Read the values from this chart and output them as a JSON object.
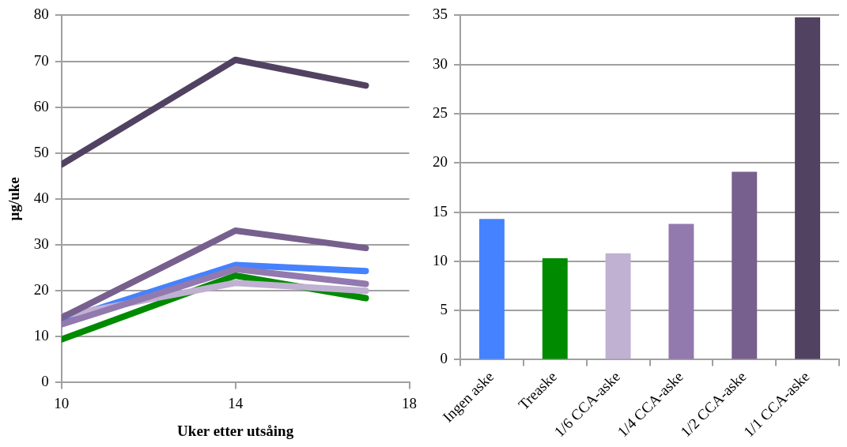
{
  "chart_data": [
    {
      "type": "line",
      "xlabel": "Uker etter utsåing",
      "ylabel": "µg/uke",
      "x": [
        10,
        14,
        17
      ],
      "xlim": [
        10,
        18
      ],
      "xticks": [
        10,
        14,
        18
      ],
      "ylim": [
        0,
        80
      ],
      "yticks": [
        0,
        10,
        20,
        30,
        40,
        50,
        60,
        70,
        80
      ],
      "grid": "y",
      "legend": false,
      "marker": "none",
      "line_style": "solid",
      "series": [
        {
          "color": "#514262",
          "values": [
            47.5,
            70.3,
            64.7
          ]
        },
        {
          "color": "#77608e",
          "values": [
            14.1,
            33.1,
            29.3
          ]
        },
        {
          "color": "#9279ae",
          "values": [
            12.7,
            24.7,
            21.5
          ]
        },
        {
          "color": "#c0b0d2",
          "values": [
            14.5,
            21.7,
            20.0
          ]
        },
        {
          "color": "#4482ff",
          "values": [
            13.6,
            25.6,
            24.3
          ]
        },
        {
          "color": "#008a00",
          "values": [
            9.4,
            23.3,
            18.4
          ]
        }
      ]
    },
    {
      "type": "bar",
      "categories": [
        "Ingen aske",
        "Treaske",
        "1/6 CCA-aske",
        "1/4 CCA-aske",
        "1/2 CCA-aske",
        "1/1 CCA-aske"
      ],
      "values": [
        14.3,
        10.3,
        10.8,
        13.8,
        19.1,
        34.8
      ],
      "colors": [
        "#4482ff",
        "#008a00",
        "#c0b0d2",
        "#9279ae",
        "#77608e",
        "#514262"
      ],
      "ylim": [
        0,
        35
      ],
      "yticks": [
        0,
        5,
        10,
        15,
        20,
        25,
        30,
        35
      ],
      "grid": "y",
      "legend": false
    }
  ]
}
